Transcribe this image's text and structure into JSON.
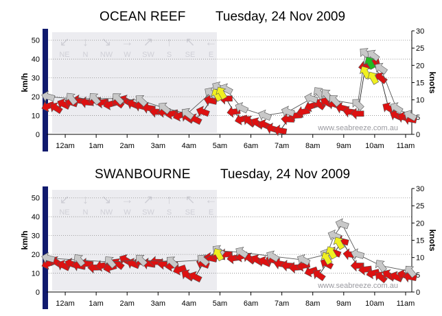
{
  "chart_data": [
    {
      "type": "line",
      "title": "OCEAN REEF",
      "date": "Tuesday, 24 Nov 2009",
      "ylabel": "km/h",
      "ylabel_right": "knots",
      "ylim": [
        0,
        55
      ],
      "yticks": [
        0,
        10,
        20,
        30,
        40,
        50
      ],
      "ylim_right": [
        0,
        30
      ],
      "yticks_right": [
        0,
        5,
        10,
        15,
        20,
        25,
        30
      ],
      "xlim": [
        -0.6,
        11.2
      ],
      "x_ticks": [
        0,
        1,
        2,
        3,
        4,
        5,
        6,
        7,
        8,
        9,
        10,
        11
      ],
      "x_tick_labels": [
        "12am",
        "1am",
        "2am",
        "3am",
        "4am",
        "5am",
        "6am",
        "7am",
        "8am",
        "9am",
        "10am",
        "11am"
      ],
      "compass_labels": [
        "NE",
        "N",
        "NW",
        "W",
        "SW",
        "S",
        "SE",
        "E"
      ],
      "watermark": "www.seabreeze.com.au",
      "series": [
        {
          "name": "average",
          "color": "#dd1111",
          "x": [
            -0.55,
            -0.3,
            -0.05,
            0.2,
            0.45,
            0.7,
            0.95,
            1.2,
            1.45,
            1.7,
            1.95,
            2.2,
            2.45,
            2.7,
            2.95,
            3.2,
            3.45,
            3.7,
            3.95,
            4.2,
            4.45,
            4.7,
            4.95,
            5.2,
            5.45,
            5.7,
            5.95,
            6.2,
            6.45,
            6.7,
            6.95,
            7.2,
            7.45,
            7.7,
            7.95,
            8.2,
            8.45,
            8.7,
            8.95,
            9.2,
            9.45,
            9.7,
            9.95,
            10.2,
            10.45,
            10.7,
            10.95,
            11.15
          ],
          "values": [
            15,
            14,
            16,
            17,
            18,
            17,
            18,
            17,
            16,
            17,
            18,
            16,
            15,
            14,
            12,
            12,
            11,
            10,
            9,
            8,
            12,
            18,
            20,
            19,
            12,
            8,
            7,
            6,
            5,
            3,
            2,
            8,
            10,
            12,
            15,
            16,
            17,
            16,
            14,
            12,
            11,
            36,
            38,
            30,
            14,
            10,
            9,
            8
          ]
        },
        {
          "name": "gust",
          "color": "#c8c8c8",
          "x": [
            -0.55,
            0.2,
            0.95,
            1.7,
            2.45,
            3.2,
            3.95,
            4.7,
            4.95,
            5.2,
            5.7,
            6.45,
            7.2,
            7.95,
            8.2,
            8.45,
            8.7,
            9.45,
            9.7,
            9.95,
            10.2,
            10.7,
            11.15
          ],
          "values": [
            20,
            19,
            19,
            19,
            18,
            14,
            11,
            22,
            25,
            24,
            14,
            10,
            12,
            19,
            22,
            21,
            18,
            16,
            43,
            42,
            35,
            14,
            10
          ]
        }
      ],
      "highlights": [
        {
          "name": "moderate-wind-arrows",
          "color": "#f0f020",
          "x": [
            4.9,
            5.05,
            9.7,
            9.95
          ],
          "values": [
            21,
            22,
            33,
            30
          ]
        },
        {
          "name": "strong-wind-arrow",
          "color": "#22bb22",
          "x": [
            9.85
          ],
          "values": [
            38
          ]
        }
      ]
    },
    {
      "type": "line",
      "title": "SWANBOURNE",
      "date": "Tuesday, 24 Nov 2009",
      "ylabel": "km/h",
      "ylabel_right": "knots",
      "ylim": [
        0,
        55
      ],
      "yticks": [
        0,
        10,
        20,
        30,
        40,
        50
      ],
      "ylim_right": [
        0,
        30
      ],
      "yticks_right": [
        0,
        5,
        10,
        15,
        20,
        25,
        30
      ],
      "xlim": [
        -0.6,
        11.2
      ],
      "x_ticks": [
        0,
        1,
        2,
        3,
        4,
        5,
        6,
        7,
        8,
        9,
        10,
        11
      ],
      "x_tick_labels": [
        "12am",
        "1am",
        "2am",
        "3am",
        "4am",
        "5am",
        "6am",
        "7am",
        "8am",
        "9am",
        "10am",
        "11am"
      ],
      "compass_labels": [
        "NE",
        "N",
        "NW",
        "W",
        "SW",
        "S",
        "SE",
        "E"
      ],
      "watermark": "www.seabreeze.com.au",
      "series": [
        {
          "name": "average",
          "color": "#dd1111",
          "x": [
            -0.55,
            -0.3,
            -0.05,
            0.2,
            0.45,
            0.7,
            0.95,
            1.2,
            1.45,
            1.7,
            1.95,
            2.2,
            2.45,
            2.7,
            2.95,
            3.2,
            3.45,
            3.7,
            3.95,
            4.2,
            4.45,
            4.7,
            4.95,
            5.2,
            5.45,
            5.7,
            5.95,
            6.2,
            6.45,
            6.7,
            6.95,
            7.2,
            7.45,
            7.7,
            7.95,
            8.2,
            8.45,
            8.7,
            8.95,
            9.2,
            9.45,
            9.7,
            9.95,
            10.2,
            10.45,
            10.7,
            10.95,
            11.15
          ],
          "values": [
            15,
            16,
            14,
            15,
            14,
            15,
            13,
            14,
            13,
            15,
            17,
            15,
            16,
            15,
            16,
            15,
            14,
            12,
            9,
            8,
            15,
            18,
            19,
            20,
            18,
            19,
            18,
            17,
            16,
            17,
            15,
            14,
            13,
            14,
            11,
            9,
            15,
            21,
            27,
            20,
            14,
            12,
            10,
            8,
            9,
            8,
            9,
            8
          ]
        },
        {
          "name": "gust",
          "color": "#c8c8c8",
          "x": [
            -0.55,
            0.45,
            1.45,
            2.45,
            3.45,
            4.45,
            4.95,
            5.7,
            6.7,
            7.7,
            8.45,
            8.7,
            8.95,
            9.45,
            10.2,
            11.15
          ],
          "values": [
            18,
            17,
            16,
            17,
            16,
            17,
            22,
            21,
            19,
            17,
            20,
            30,
            36,
            20,
            14,
            11
          ]
        }
      ],
      "highlights": [
        {
          "name": "moderate-wind-arrows",
          "color": "#f0f020",
          "x": [
            4.95,
            8.45,
            8.6,
            8.85
          ],
          "values": [
            20,
            18,
            21,
            26
          ]
        }
      ]
    }
  ]
}
